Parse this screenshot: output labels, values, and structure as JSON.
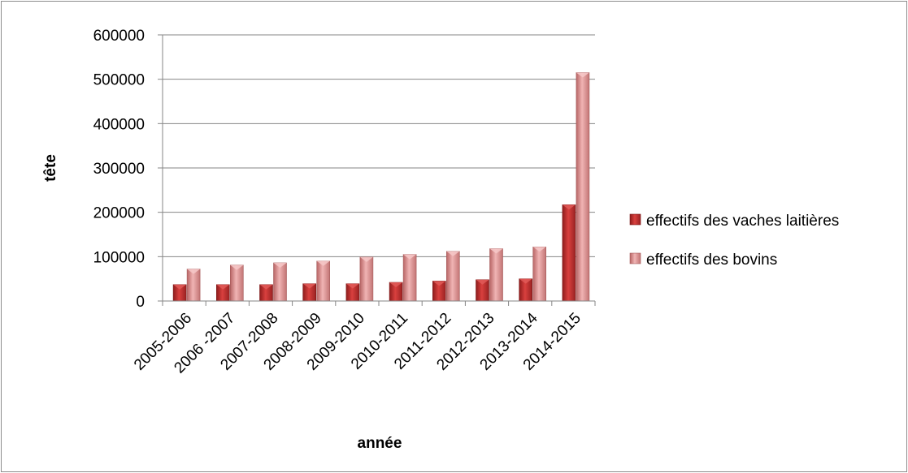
{
  "chart_data": {
    "type": "bar",
    "title": "",
    "xlabel": "année",
    "ylabel": "tête",
    "ylim": [
      0,
      600000
    ],
    "yticks": [
      "0",
      "100000",
      "200000",
      "300000",
      "400000",
      "500000",
      "600000"
    ],
    "grid": true,
    "legend_position": "right",
    "categories": [
      "2005-2006",
      "2006 -2007",
      "2007-2008",
      "2008-2009",
      "2009-2010",
      "2010-2011",
      "2011-2012",
      "2012-2013",
      "2013-2014",
      "2014-2015"
    ],
    "series": [
      {
        "name": "effectifs des vaches laitières",
        "color": "#c0302f",
        "values": [
          37000,
          37000,
          37000,
          39000,
          39000,
          42000,
          45000,
          48000,
          50000,
          217000
        ]
      },
      {
        "name": "effectifs des bovins",
        "color": "#d98b8b",
        "values": [
          72000,
          81000,
          86000,
          90000,
          99000,
          105000,
          112000,
          118000,
          122000,
          515000
        ]
      }
    ]
  }
}
